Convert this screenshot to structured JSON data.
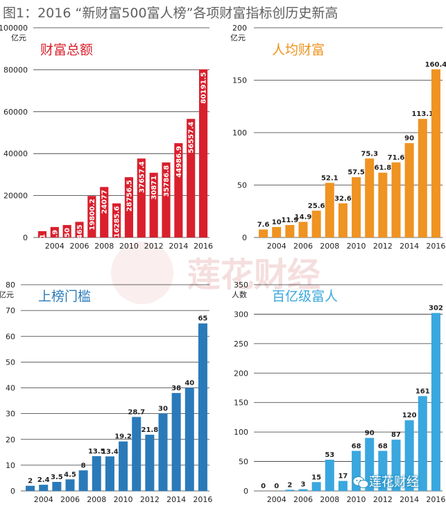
{
  "page": {
    "title": "图1：2016 “新财富500富人榜”各项财富指标创历史新高",
    "watermark": "莲花财经",
    "logo_text": "莲花财经"
  },
  "colors": {
    "red": "#d9202d",
    "orange": "#ef9322",
    "blue": "#2a7ab9",
    "lightblue": "#3aa7de",
    "grid": "#333333"
  },
  "chart_data": [
    {
      "type": "bar",
      "title": "财富总额",
      "unit": "亿元",
      "color": "red",
      "rotated_labels": true,
      "ylim": [
        0,
        100000
      ],
      "yticks": [
        0,
        20000,
        40000,
        60000,
        80000,
        100000
      ],
      "categories": [
        "2003",
        "2004",
        "2005",
        "2006",
        "2007",
        "2008",
        "2009",
        "2010",
        "2011",
        "2012",
        "2013",
        "2014",
        "2015",
        "2016"
      ],
      "xtick_labels": [
        "2004",
        "2006",
        "2008",
        "2010",
        "2012",
        "2014",
        "2016"
      ],
      "values": [
        3031,
        5001.9,
        5950,
        7465,
        19800.2,
        24077,
        16285.6,
        28756.5,
        37657.4,
        30871,
        35786.8,
        44986.9,
        56557.4,
        80191.5
      ],
      "value_labels": [
        "3031",
        "5001.9",
        "5950",
        "7465",
        "19800.2",
        "24077",
        "16285.6",
        "28756.5",
        "37657.4",
        "30871",
        "35786.8",
        "44986.9",
        "56557.4",
        "80191.5"
      ]
    },
    {
      "type": "bar",
      "title": "人均财富",
      "unit": "亿元",
      "color": "orange",
      "rotated_labels": false,
      "ylim": [
        0,
        200
      ],
      "yticks": [
        0,
        50,
        100,
        150,
        200
      ],
      "categories": [
        "2003",
        "2004",
        "2005",
        "2006",
        "2007",
        "2008",
        "2009",
        "2010",
        "2011",
        "2012",
        "2013",
        "2014",
        "2015",
        "2016"
      ],
      "xtick_labels": [
        "2004",
        "2006",
        "2008",
        "2010",
        "2012",
        "2014",
        "2016"
      ],
      "values": [
        7.6,
        10,
        11.9,
        14.9,
        25.6,
        52.1,
        32.6,
        57.5,
        75.3,
        61.8,
        71.6,
        90,
        113.1,
        160.4
      ],
      "value_labels": [
        "7.6",
        "10",
        "11.9",
        "14.9",
        "25.6",
        "52.1",
        "32.6",
        "57.5",
        "75.3",
        "61.8",
        "71.6",
        "90",
        "113.1",
        "160.4"
      ]
    },
    {
      "type": "bar",
      "title": "上榜门槛",
      "unit": "亿元",
      "color": "blue",
      "rotated_labels": false,
      "ylim": [
        0,
        80
      ],
      "yticks": [
        0,
        10,
        20,
        30,
        40,
        50,
        60,
        70,
        80
      ],
      "categories": [
        "2003",
        "2004",
        "2005",
        "2006",
        "2007",
        "2008",
        "2009",
        "2010",
        "2011",
        "2012",
        "2013",
        "2014",
        "2015",
        "2016"
      ],
      "xtick_labels": [
        "2004",
        "2006",
        "2008",
        "2010",
        "2012",
        "2014",
        "2016"
      ],
      "values": [
        2,
        2.4,
        3.5,
        4.5,
        8,
        13.5,
        13.4,
        19.2,
        28.7,
        21.8,
        30,
        38,
        40,
        65
      ],
      "value_labels": [
        "2",
        "2.4",
        "3.5",
        "4.5",
        "8",
        "13.5",
        "13.4",
        "19.2",
        "28.7",
        "21.8",
        "30",
        "38",
        "40",
        "65"
      ]
    },
    {
      "type": "bar",
      "title": "百亿级富人",
      "unit": "人数",
      "color": "lightblue",
      "rotated_labels": false,
      "ylim": [
        0,
        350
      ],
      "yticks": [
        0,
        50,
        100,
        150,
        200,
        250,
        300,
        350
      ],
      "categories": [
        "2003",
        "2004",
        "2005",
        "2006",
        "2007",
        "2008",
        "2009",
        "2010",
        "2011",
        "2012",
        "2013",
        "2014",
        "2015",
        "2016"
      ],
      "xtick_labels": [
        "2004",
        "2006",
        "2008",
        "2010",
        "2012",
        "2014",
        "2016"
      ],
      "values": [
        0,
        0,
        2,
        3,
        15,
        53,
        17,
        68,
        90,
        68,
        87,
        120,
        161,
        302
      ],
      "value_labels": [
        "0",
        "0",
        "2",
        "3",
        "15",
        "53",
        "17",
        "68",
        "90",
        "68",
        "87",
        "120",
        "161",
        "302"
      ]
    }
  ]
}
